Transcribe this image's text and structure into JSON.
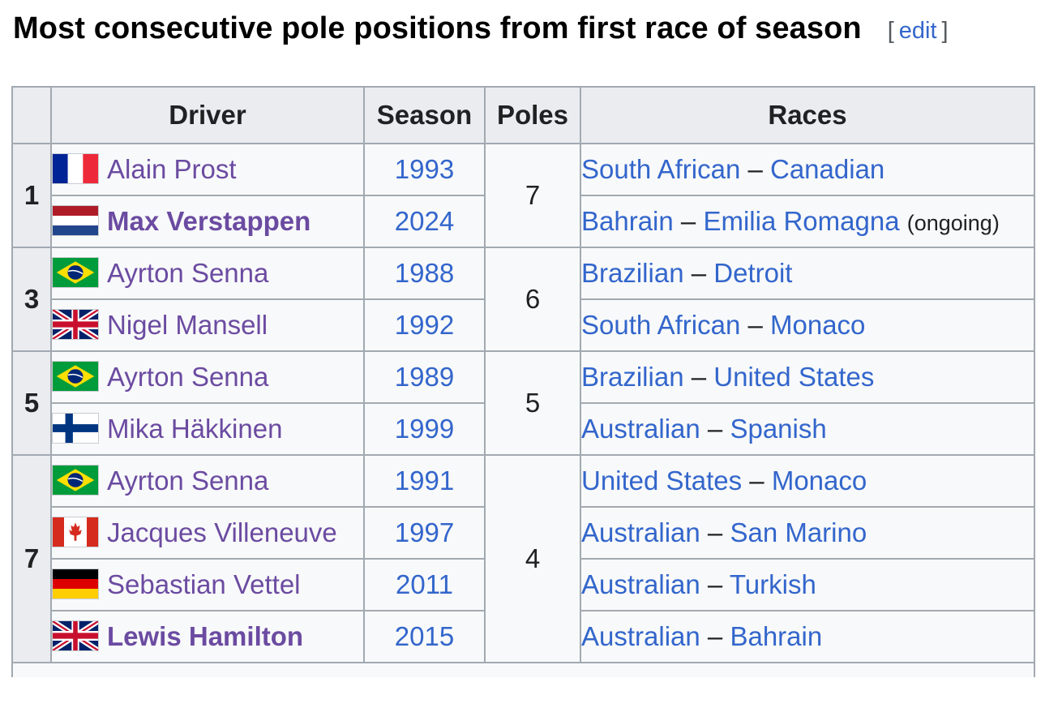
{
  "heading": {
    "title": "Most consecutive pole positions from first race of season",
    "edit_open": "[",
    "edit_label": "edit",
    "edit_close": "]"
  },
  "table": {
    "headers": {
      "rank": "",
      "driver": "Driver",
      "season": "Season",
      "poles": "Poles",
      "races": "Races"
    },
    "groups": [
      {
        "rank": "1",
        "poles": "7",
        "rows": [
          {
            "flag": "france-flag-icon",
            "driver": "Alain Prost",
            "bold": false,
            "season": "1993",
            "race_from": "South African",
            "race_to": "Canadian",
            "note": ""
          },
          {
            "flag": "netherlands-flag-icon",
            "driver": "Max Verstappen",
            "bold": true,
            "season": "2024",
            "race_from": "Bahrain",
            "race_to": "Emilia Romagna",
            "note": "(ongoing)"
          }
        ]
      },
      {
        "rank": "3",
        "poles": "6",
        "rows": [
          {
            "flag": "brazil-flag-icon",
            "driver": "Ayrton Senna",
            "bold": false,
            "season": "1988",
            "race_from": "Brazilian",
            "race_to": "Detroit",
            "note": ""
          },
          {
            "flag": "uk-flag-icon",
            "driver": "Nigel Mansell",
            "bold": false,
            "season": "1992",
            "race_from": "South African",
            "race_to": "Monaco",
            "note": ""
          }
        ]
      },
      {
        "rank": "5",
        "poles": "5",
        "rows": [
          {
            "flag": "brazil-flag-icon",
            "driver": "Ayrton Senna",
            "bold": false,
            "season": "1989",
            "race_from": "Brazilian",
            "race_to": "United States",
            "note": ""
          },
          {
            "flag": "finland-flag-icon",
            "driver": "Mika Häkkinen",
            "bold": false,
            "season": "1999",
            "race_from": "Australian",
            "race_to": "Spanish",
            "note": ""
          }
        ]
      },
      {
        "rank": "7",
        "poles": "4",
        "rows": [
          {
            "flag": "brazil-flag-icon",
            "driver": "Ayrton Senna",
            "bold": false,
            "season": "1991",
            "race_from": "United States",
            "race_to": "Monaco",
            "note": ""
          },
          {
            "flag": "canada-flag-icon",
            "driver": "Jacques Villeneuve",
            "bold": false,
            "season": "1997",
            "race_from": "Australian",
            "race_to": "San Marino",
            "note": ""
          },
          {
            "flag": "germany-flag-icon",
            "driver": "Sebastian Vettel",
            "bold": false,
            "season": "2011",
            "race_from": "Australian",
            "race_to": "Turkish",
            "note": ""
          },
          {
            "flag": "uk-flag-icon",
            "driver": "Lewis Hamilton",
            "bold": true,
            "season": "2015",
            "race_from": "Australian",
            "race_to": "Bahrain",
            "note": ""
          }
        ]
      }
    ],
    "dash": "–"
  },
  "colors": {
    "link": "#3366cc",
    "visited_link": "#6b4ba1",
    "header_bg": "#eaecf0",
    "cell_bg": "#f8f9fa",
    "border": "#a2a9b1"
  }
}
